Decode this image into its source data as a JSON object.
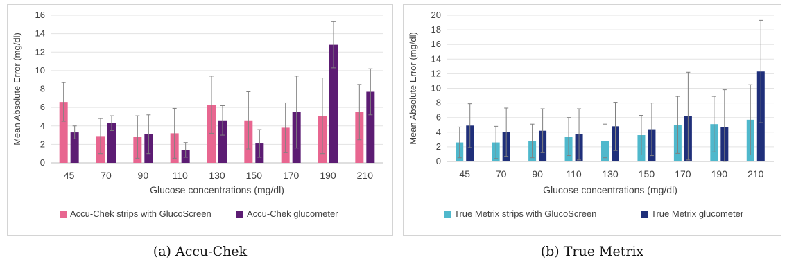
{
  "chart_data": [
    {
      "type": "bar",
      "caption": "(a) Accu-Chek",
      "xlabel": "Glucose concentrations (mg/dl)",
      "ylabel": "Mean Absolute Error (mg/dl)",
      "ylim": [
        0,
        16
      ],
      "yticks": [
        0,
        2,
        4,
        6,
        8,
        10,
        12,
        14,
        16
      ],
      "grid": true,
      "legend_position": "bottom",
      "categories": [
        "45",
        "70",
        "90",
        "110",
        "130",
        "150",
        "170",
        "190",
        "210"
      ],
      "series": [
        {
          "name": "Accu-Chek strips with GlucoScreen",
          "color": "#e86690",
          "values": [
            6.6,
            2.9,
            2.8,
            3.2,
            6.3,
            4.6,
            3.8,
            5.1,
            5.5
          ],
          "error": [
            2.1,
            1.9,
            2.3,
            2.7,
            3.1,
            3.1,
            2.7,
            4.1,
            3.0
          ]
        },
        {
          "name": "Accu-Chek glucometer",
          "color": "#5c1c73",
          "values": [
            3.3,
            4.3,
            3.1,
            1.4,
            4.6,
            2.1,
            5.5,
            12.8,
            7.7
          ],
          "error": [
            0.7,
            0.8,
            2.1,
            0.8,
            1.6,
            1.5,
            3.9,
            2.5,
            2.5
          ]
        }
      ]
    },
    {
      "type": "bar",
      "caption": "(b) True Metrix",
      "xlabel": "Glucose concentrations (mg/dl)",
      "ylabel": "Mean Absolute Error (mg/dl)",
      "ylim": [
        0,
        20
      ],
      "yticks": [
        0,
        2,
        4,
        6,
        8,
        10,
        12,
        14,
        16,
        18,
        20
      ],
      "grid": true,
      "legend_position": "bottom",
      "categories": [
        "45",
        "70",
        "90",
        "110",
        "130",
        "150",
        "170",
        "190",
        "210"
      ],
      "series": [
        {
          "name": "True Metrix strips with GlucoScreen",
          "color": "#4fb8cc",
          "values": [
            2.6,
            2.6,
            2.8,
            3.4,
            2.8,
            3.6,
            5.0,
            5.1,
            5.7
          ],
          "error": [
            2.1,
            2.2,
            2.3,
            2.6,
            2.3,
            2.7,
            3.9,
            3.8,
            4.8
          ]
        },
        {
          "name": "True Metrix glucometer",
          "color": "#1f2f7a",
          "values": [
            4.9,
            4.0,
            4.2,
            3.7,
            4.8,
            4.4,
            6.2,
            4.7,
            12.3
          ],
          "error": [
            3.0,
            3.3,
            3.0,
            3.5,
            3.3,
            3.6,
            6.0,
            5.1,
            7.0
          ]
        }
      ]
    }
  ]
}
